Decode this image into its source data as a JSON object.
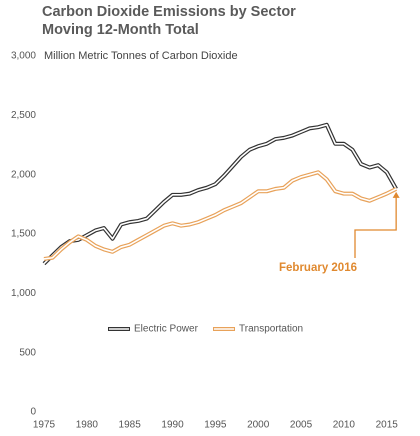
{
  "chart_data": {
    "type": "line",
    "title": "Carbon Dioxide Emissions by Sector",
    "subtitle": "Moving 12-Month Total",
    "y_label": "Million Metric Tonnes of Carbon Dioxide",
    "annotation": "February 2016",
    "x": [
      1975,
      1976,
      1977,
      1978,
      1979,
      1980,
      1981,
      1982,
      1983,
      1984,
      1985,
      1986,
      1987,
      1988,
      1989,
      1990,
      1991,
      1992,
      1993,
      1994,
      1995,
      1996,
      1997,
      1998,
      1999,
      2000,
      2001,
      2002,
      2003,
      2004,
      2005,
      2006,
      2007,
      2008,
      2009,
      2010,
      2011,
      2012,
      2013,
      2014,
      2015,
      2016.1
    ],
    "series": [
      {
        "name": "Electric Power",
        "color": "#333333",
        "values": [
          1250,
          1320,
          1390,
          1440,
          1450,
          1490,
          1530,
          1550,
          1460,
          1580,
          1600,
          1610,
          1630,
          1700,
          1770,
          1830,
          1830,
          1840,
          1870,
          1890,
          1920,
          1990,
          2070,
          2150,
          2210,
          2240,
          2260,
          2300,
          2310,
          2330,
          2360,
          2390,
          2400,
          2420,
          2260,
          2260,
          2210,
          2090,
          2060,
          2080,
          2020,
          1880
        ]
      },
      {
        "name": "Transportation",
        "color": "#e8a25a",
        "values": [
          1290,
          1300,
          1370,
          1430,
          1480,
          1450,
          1400,
          1370,
          1350,
          1390,
          1410,
          1450,
          1490,
          1530,
          1570,
          1590,
          1570,
          1580,
          1600,
          1630,
          1660,
          1700,
          1730,
          1760,
          1810,
          1860,
          1860,
          1880,
          1890,
          1950,
          1980,
          2000,
          2020,
          1960,
          1860,
          1840,
          1840,
          1800,
          1780,
          1810,
          1840,
          1880
        ]
      }
    ],
    "xlim": [
      1975,
      2016.2
    ],
    "xticks": [
      1975,
      1980,
      1985,
      1990,
      1995,
      2000,
      2005,
      2010,
      2015
    ],
    "ylim": [
      0,
      3000
    ],
    "yticks": [
      0,
      500,
      {
        "value": 1000,
        "label": "1,000"
      },
      {
        "value": 1500,
        "label": "1,500"
      },
      {
        "value": 2000,
        "label": "2,000"
      },
      {
        "value": 2500,
        "label": "2,500"
      },
      {
        "value": 3000,
        "label": "3,000"
      }
    ],
    "grid": false
  }
}
